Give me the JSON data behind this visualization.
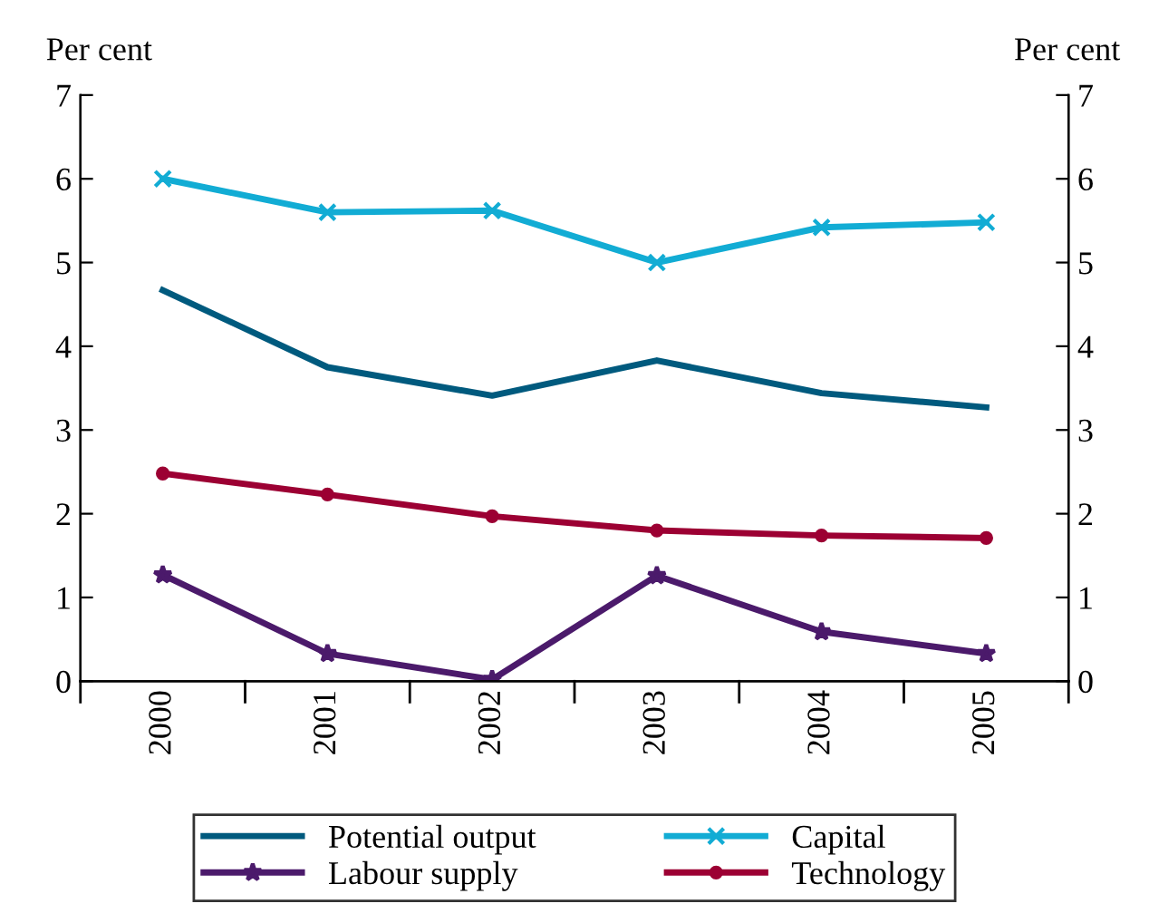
{
  "chart_data": {
    "type": "line",
    "ylabel": "Per cent",
    "y2label": "Per cent",
    "categories": [
      "2000",
      "2001",
      "2002",
      "2003",
      "2004",
      "2005"
    ],
    "series": [
      {
        "name": "Potential output",
        "color": "#005a7e",
        "marker": "none",
        "values": [
          4.67,
          3.75,
          3.41,
          3.83,
          3.44,
          3.27
        ]
      },
      {
        "name": "Capital",
        "color": "#12acd4",
        "marker": "cross",
        "values": [
          6.0,
          5.6,
          5.62,
          5.0,
          5.42,
          5.48
        ]
      },
      {
        "name": "Labour supply",
        "color": "#4b1a6b",
        "marker": "star",
        "values": [
          1.27,
          0.33,
          0.02,
          1.26,
          0.59,
          0.33
        ]
      },
      {
        "name": "Technology",
        "color": "#9c0033",
        "marker": "circle",
        "values": [
          2.48,
          2.23,
          1.97,
          1.8,
          1.74,
          1.71
        ]
      }
    ],
    "ylim": [
      0,
      7
    ],
    "yticks": [
      0,
      1,
      2,
      3,
      4,
      5,
      6,
      7
    ],
    "y2lim": [
      0,
      7
    ],
    "y2ticks": [
      0,
      1,
      2,
      3,
      4,
      5,
      6,
      7
    ],
    "grid": false,
    "legend": "bottom"
  }
}
